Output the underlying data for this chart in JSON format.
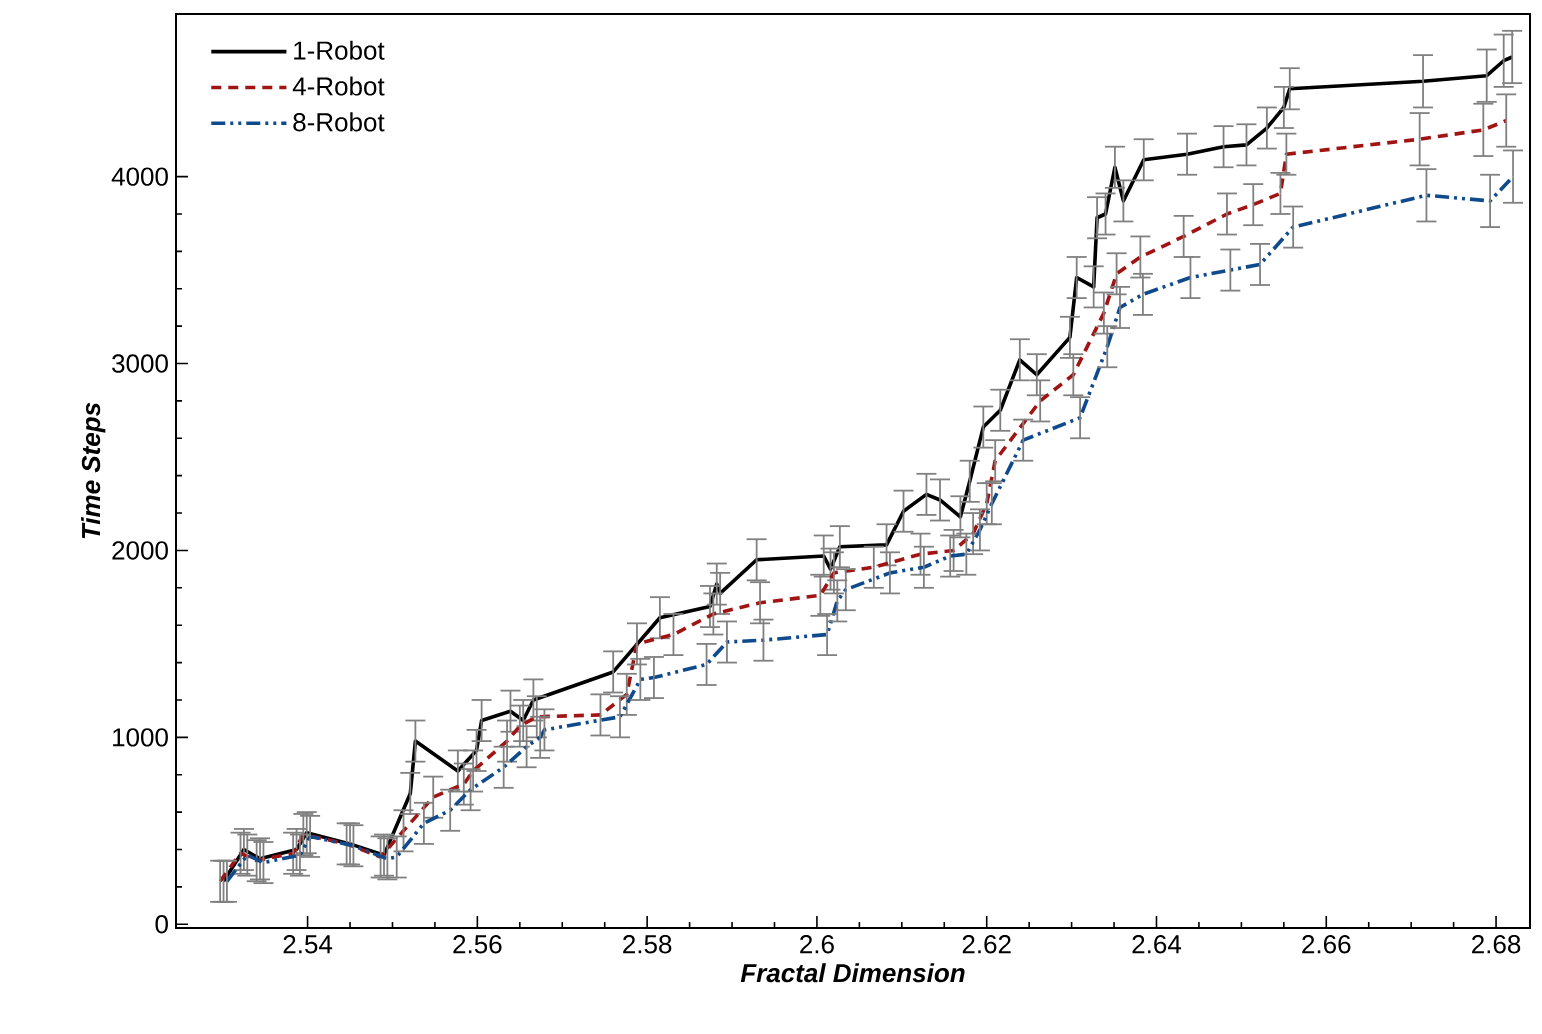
{
  "chart_data": {
    "type": "line",
    "xlabel": "Fractal Dimension",
    "ylabel": "Time Steps",
    "xlim": [
      2.5245,
      2.684
    ],
    "ylim": [
      -20,
      4870
    ],
    "xticks": [
      2.54,
      2.56,
      2.58,
      2.6,
      2.62,
      2.64,
      2.66,
      2.68
    ],
    "yticks": [
      0,
      1000,
      2000,
      3000,
      4000
    ],
    "legend": "top left",
    "series": [
      {
        "name": "1-Robot",
        "color": "#000000",
        "line_style": "solid",
        "x": [
          2.5301,
          2.5325,
          2.5344,
          2.5387,
          2.5399,
          2.545,
          2.549,
          2.5521,
          2.5527,
          2.5577,
          2.5599,
          2.5605,
          2.5639,
          2.5654,
          2.5666,
          2.576,
          2.5815,
          2.5874,
          2.5882,
          2.5886,
          2.5929,
          2.6008,
          2.6016,
          2.6027,
          2.6082,
          2.6102,
          2.6129,
          2.6145,
          2.6169,
          2.618,
          2.6196,
          2.6216,
          2.6239,
          2.6259,
          2.6298,
          2.6306,
          2.6326,
          2.633,
          2.634,
          2.6351,
          2.6361,
          2.6385,
          2.6436,
          2.6479,
          2.6506,
          2.653,
          2.655,
          2.6557,
          2.6714,
          2.6789,
          2.6809,
          2.6819
        ],
        "values": [
          230,
          400,
          350,
          400,
          490,
          430,
          370,
          700,
          980,
          820,
          930,
          1090,
          1140,
          1090,
          1200,
          1350,
          1640,
          1700,
          1820,
          1770,
          1950,
          1970,
          1900,
          2020,
          2030,
          2210,
          2300,
          2270,
          2180,
          2370,
          2660,
          2750,
          3020,
          2940,
          3140,
          3460,
          3410,
          3780,
          3800,
          4050,
          3870,
          4090,
          4120,
          4160,
          4170,
          4260,
          4370,
          4470,
          4510,
          4540,
          4620,
          4640
        ],
        "errors": [
          110,
          110,
          110,
          110,
          110,
          110,
          110,
          110,
          110,
          110,
          110,
          110,
          110,
          110,
          110,
          110,
          110,
          110,
          110,
          110,
          110,
          110,
          110,
          110,
          110,
          110,
          110,
          110,
          110,
          110,
          110,
          110,
          110,
          110,
          110,
          110,
          110,
          110,
          110,
          110,
          110,
          110,
          110,
          110,
          110,
          110,
          110,
          110,
          140,
          140,
          140,
          140
        ]
      },
      {
        "name": "4-Robot",
        "color": "#a01414",
        "line_style": "dashed",
        "x": [
          2.5297,
          2.5321,
          2.534,
          2.5383,
          2.5395,
          2.5446,
          2.5486,
          2.5513,
          2.5548,
          2.5584,
          2.5595,
          2.5635,
          2.565,
          2.567,
          2.5745,
          2.5776,
          2.5788,
          2.5831,
          2.5878,
          2.5933,
          2.6004,
          2.602,
          2.6067,
          2.6122,
          2.6161,
          2.6184,
          2.62,
          2.621,
          2.6263,
          2.6302,
          2.6338,
          2.6353,
          2.6381,
          2.6432,
          2.6483,
          2.6514,
          2.6546,
          2.6553,
          2.671,
          2.6785,
          2.6812
        ],
        "values": [
          230,
          380,
          340,
          380,
          480,
          430,
          360,
          500,
          680,
          750,
          820,
          980,
          1060,
          1110,
          1120,
          1230,
          1500,
          1550,
          1660,
          1720,
          1760,
          1880,
          1910,
          1980,
          2000,
          2090,
          2250,
          2480,
          2800,
          2940,
          3270,
          3480,
          3570,
          3680,
          3800,
          3850,
          3910,
          4120,
          4200,
          4250,
          4300
        ],
        "errors": [
          110,
          110,
          110,
          110,
          110,
          110,
          110,
          110,
          110,
          110,
          110,
          110,
          110,
          110,
          110,
          110,
          110,
          110,
          110,
          110,
          110,
          110,
          110,
          110,
          110,
          110,
          110,
          110,
          110,
          110,
          110,
          110,
          110,
          110,
          110,
          110,
          110,
          110,
          140,
          140,
          140
        ]
      },
      {
        "name": "8-Robot",
        "color": "#0f4a8c",
        "line_style": "dashdotdotted",
        "x": [
          2.5305,
          2.5329,
          2.5348,
          2.5391,
          2.5403,
          2.5454,
          2.5494,
          2.5505,
          2.5537,
          2.5568,
          2.5592,
          2.5631,
          2.5658,
          2.5674,
          2.5679,
          2.5768,
          2.5792,
          2.5808,
          2.587,
          2.5894,
          2.5937,
          2.6012,
          2.6024,
          2.6034,
          2.6086,
          2.6126,
          2.6157,
          2.6176,
          2.6192,
          2.6206,
          2.6243,
          2.631,
          2.6342,
          2.6357,
          2.6384,
          2.644,
          2.6487,
          2.6522,
          2.6561,
          2.6718,
          2.6793,
          2.682
        ],
        "values": [
          230,
          370,
          330,
          370,
          470,
          420,
          350,
          360,
          540,
          610,
          720,
          840,
          950,
          1000,
          1040,
          1110,
          1310,
          1320,
          1390,
          1510,
          1520,
          1550,
          1730,
          1790,
          1880,
          1910,
          1970,
          1980,
          2110,
          2250,
          2590,
          2710,
          3090,
          3300,
          3370,
          3460,
          3500,
          3530,
          3730,
          3900,
          3870,
          4000
        ],
        "errors": [
          110,
          110,
          110,
          110,
          110,
          110,
          110,
          110,
          110,
          110,
          110,
          110,
          110,
          110,
          110,
          110,
          110,
          110,
          110,
          110,
          110,
          110,
          110,
          110,
          110,
          110,
          110,
          110,
          110,
          110,
          110,
          110,
          110,
          110,
          110,
          110,
          110,
          110,
          110,
          140,
          140,
          140
        ]
      }
    ]
  }
}
